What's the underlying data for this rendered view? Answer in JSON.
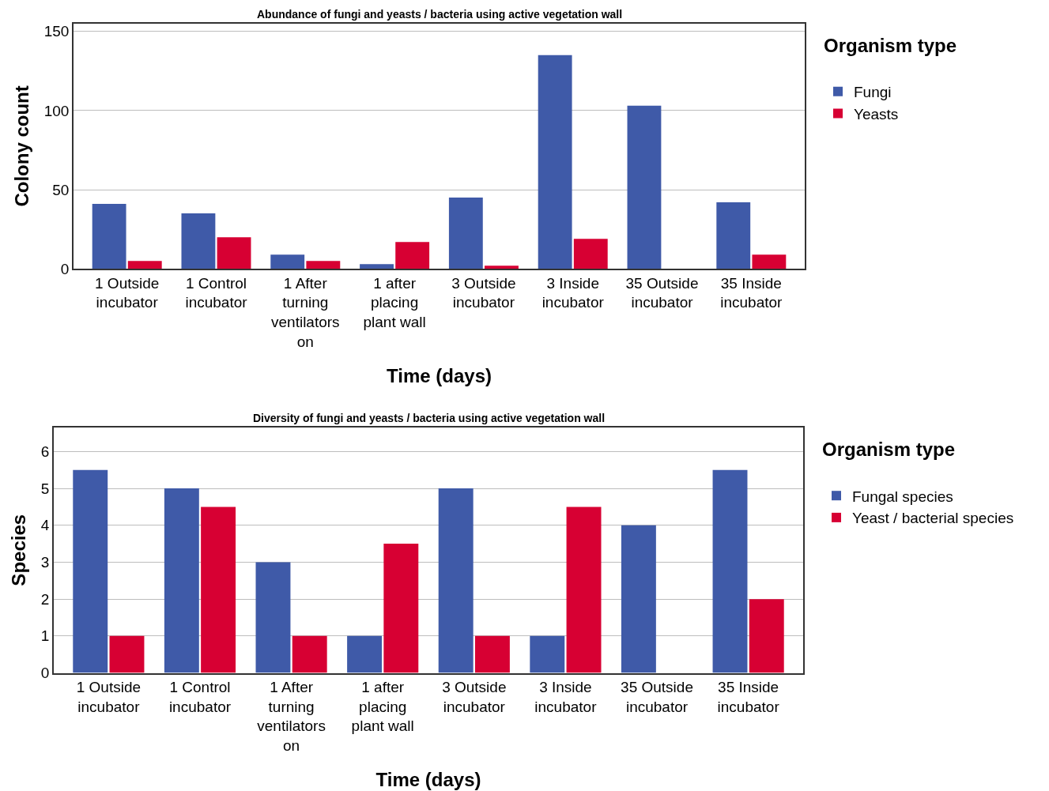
{
  "chart_data": [
    {
      "type": "bar",
      "title": "Abundance of fungi and yeasts / bacteria using active vegetation wall",
      "xlabel": "Time (days)",
      "ylabel": "Colony count",
      "legend_title": "Organism type",
      "categories": [
        "1 Outside incubator",
        "1 Control incubator",
        "1 After turning ventilators on",
        "1 after placing plant wall",
        "3 Outside incubator",
        "3 Inside incubator",
        "35 Outside incubator",
        "35 Inside incubator"
      ],
      "series": [
        {
          "name": "Fungi",
          "color": "#3f5aa8",
          "values": [
            41,
            35,
            9,
            3,
            45,
            135,
            103,
            42
          ]
        },
        {
          "name": "Yeasts",
          "color": "#d70033",
          "values": [
            5,
            20,
            5,
            17,
            2,
            19,
            null,
            9
          ]
        }
      ],
      "ylim": [
        0,
        155
      ],
      "yticks": [
        0,
        50,
        100,
        150
      ],
      "grid": "y",
      "legend": "right"
    },
    {
      "type": "bar",
      "title": "Diversity of fungi and yeasts / bacteria using active vegetation wall",
      "xlabel": "Time (days)",
      "ylabel": "Species",
      "legend_title": "Organism type",
      "categories": [
        "1 Outside incubator",
        "1 Control incubator",
        "1 After turning ventilators on",
        "1 after placing plant wall",
        "3 Outside incubator",
        "3 Inside incubator",
        "35 Outside incubator",
        "35 Inside incubator"
      ],
      "series": [
        {
          "name": "Fungal species",
          "color": "#3f5aa8",
          "values": [
            5.5,
            5,
            3,
            1,
            5,
            1,
            4,
            5.5
          ]
        },
        {
          "name": "Yeast / bacterial species",
          "color": "#d70033",
          "values": [
            1,
            4.5,
            1,
            3.5,
            1,
            4.5,
            null,
            2
          ]
        }
      ],
      "ylim": [
        0,
        6.65
      ],
      "yticks": [
        0,
        1,
        2,
        3,
        4,
        5,
        6
      ],
      "grid": "y",
      "legend": "right"
    }
  ]
}
